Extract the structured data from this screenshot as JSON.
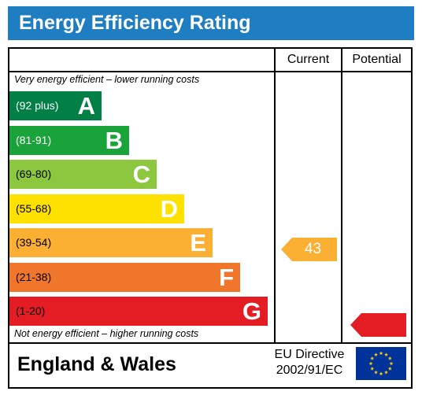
{
  "title": "Energy Efficiency Rating",
  "columns": {
    "current": "Current",
    "potential": "Potential"
  },
  "top_note": "Very energy efficient – lower running costs",
  "bottom_note": "Not energy efficient – higher running costs",
  "bands": [
    {
      "range": "(92 plus)",
      "letter": "A",
      "color": "#008045",
      "range_color": "#ffffff"
    },
    {
      "range": "(81-91)",
      "letter": "B",
      "color": "#19a33a",
      "range_color": "#ffffff"
    },
    {
      "range": "(69-80)",
      "letter": "C",
      "color": "#8dc63f",
      "range_color": "#000000"
    },
    {
      "range": "(55-68)",
      "letter": "D",
      "color": "#ffe100",
      "range_color": "#000000"
    },
    {
      "range": "(39-54)",
      "letter": "E",
      "color": "#fbb034",
      "range_color": "#000000"
    },
    {
      "range": "(21-38)",
      "letter": "F",
      "color": "#f0762b",
      "range_color": "#000000"
    },
    {
      "range": "(1-20)",
      "letter": "G",
      "color": "#e31d23",
      "range_color": "#000000"
    }
  ],
  "current_rating": {
    "value": "43",
    "color": "#fbb034"
  },
  "potential_rating": {
    "value": "",
    "color": "#e31d23"
  },
  "footer": {
    "region": "England & Wales",
    "directive_line1": "EU Directive",
    "directive_line2": "2002/91/EC",
    "flag_icon": "eu-flag-icon"
  }
}
